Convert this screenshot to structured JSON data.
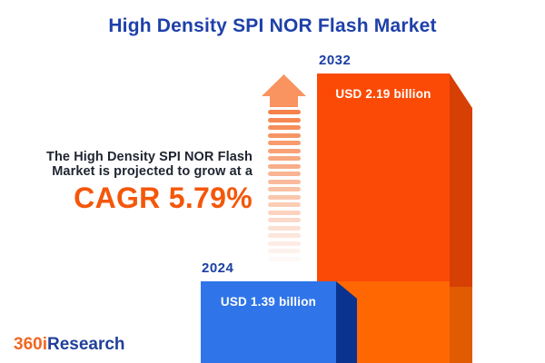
{
  "title": "High Density SPI NOR Flash Market",
  "description": {
    "line1": "The High Density SPI NOR Flash",
    "line2": "Market is projected to grow at a",
    "cagr": "CAGR 5.79%"
  },
  "chart_data": {
    "type": "bar",
    "title": "High Density SPI NOR Flash Market",
    "categories": [
      "2024",
      "2032"
    ],
    "values": [
      1.39,
      2.19
    ],
    "unit": "USD billion",
    "data_labels": [
      "USD 1.39 billion",
      "USD 2.19 billion"
    ],
    "annotation": "CAGR 5.79%",
    "legend_position": "none",
    "axes": "none",
    "bar_colors": [
      "#2F74E8",
      "#FB4A06"
    ]
  },
  "logo": {
    "prefix": "360i",
    "suffix": "Research"
  },
  "colors": {
    "title-blue": "#1E40A9",
    "text-dark": "#1F2430",
    "cagr-orange": "#F4570A",
    "bar-blue": "#2F74E8",
    "bar-blue-side": "#0A338F",
    "orange-face": "#FB4A06",
    "orange-lower": "#FE6702",
    "orange-side-dark": "#D74005",
    "orange-side-light": "#E05B02",
    "arrow-orange": "#F9935F",
    "stripe-orange": "#F5824A",
    "year-blue": "#1B3FA3",
    "logo-orange": "#F26722",
    "logo-blue": "#21409A"
  }
}
